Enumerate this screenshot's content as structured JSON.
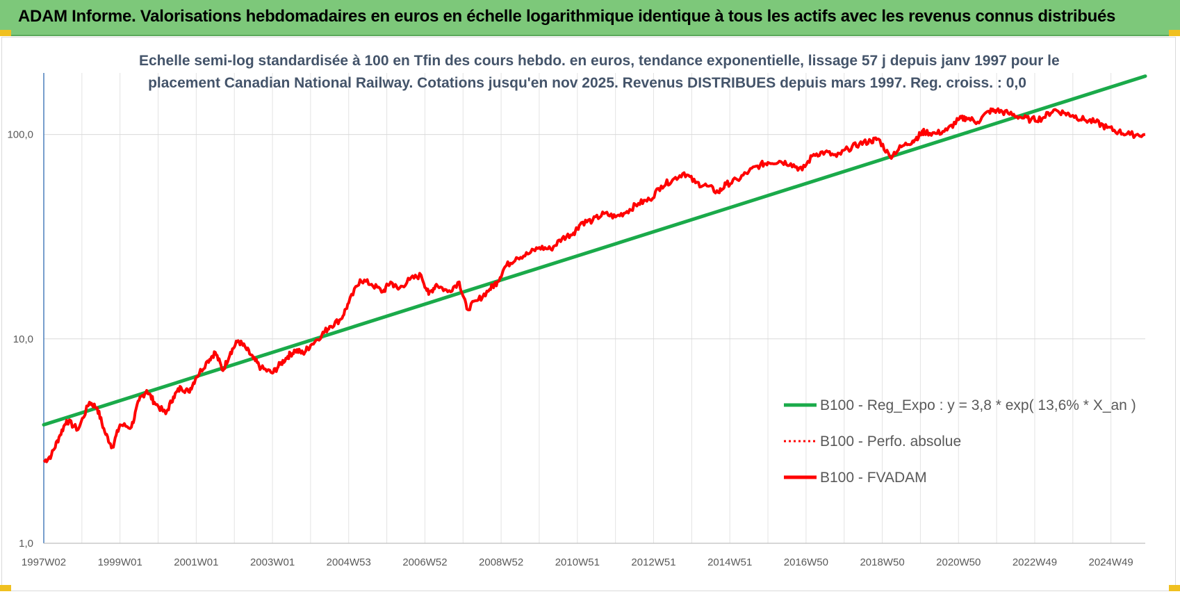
{
  "header": {
    "title": "ADAM Informe. Valorisations hebdomadaires en euros en échelle logarithmique identique à tous les actifs avec les revenus connus distribués"
  },
  "chart_data": {
    "type": "line",
    "title_line1": "Echelle semi-log standardisée à 100 en Tfin des cours hebdo. en euros, tendance exponentielle, lissage 57 j depuis janv 1997 pour le",
    "title_line2": "placement Canadian National Railway. Cotations jusqu'en nov 2025. Revenus DISTRIBUES depuis mars 1997. Reg. croiss. : 0,0",
    "y_scale": "log",
    "ylim": [
      1,
      200
    ],
    "y_ticks": [
      1,
      10,
      100
    ],
    "y_tick_labels": [
      "1,0",
      "10,0",
      "100,0"
    ],
    "xlim": [
      1997.0,
      2025.9
    ],
    "x_tick_labels": [
      "1997W02",
      "1999W01",
      "2001W01",
      "2003W01",
      "2004W53",
      "2006W52",
      "2008W52",
      "2010W51",
      "2012W51",
      "2014W51",
      "2016W50",
      "2018W50",
      "2020W50",
      "2022W49",
      "2024W49"
    ],
    "x_tick_years": [
      1997.0,
      1999.0,
      2001.0,
      2003.0,
      2005.0,
      2007.0,
      2009.0,
      2011.0,
      2013.0,
      2015.0,
      2017.0,
      2019.0,
      2021.0,
      2023.0,
      2025.0
    ],
    "grid": true,
    "legend_placement": "bottom-right",
    "series": [
      {
        "name": "B100 - Reg_Expo : y = 3,8 * exp( 13,6% *  X_an )",
        "color": "#1aaa4a",
        "style": "solid",
        "x": [
          1997.0,
          2025.9
        ],
        "values": [
          3.8,
          193
        ]
      },
      {
        "name": "B100 - Perfo. absolue",
        "color": "#ff0000",
        "style": "dotted",
        "x": [],
        "values": []
      },
      {
        "name": "B100 - FVADAM",
        "color": "#ff0000",
        "style": "solid",
        "x": [
          1997.0,
          1997.2,
          1997.4,
          1997.6,
          1997.9,
          1998.2,
          1998.4,
          1998.6,
          1998.8,
          1999.0,
          1999.3,
          1999.5,
          1999.7,
          1999.9,
          2000.2,
          2000.4,
          2000.6,
          2000.8,
          2001.0,
          2001.3,
          2001.5,
          2001.7,
          2001.9,
          2002.1,
          2002.3,
          2002.5,
          2002.7,
          2003.0,
          2003.2,
          2003.4,
          2003.6,
          2003.8,
          2004.0,
          2004.3,
          2004.5,
          2004.8,
          2005.0,
          2005.3,
          2005.6,
          2005.9,
          2006.1,
          2006.3,
          2006.6,
          2006.9,
          2007.1,
          2007.3,
          2007.6,
          2007.9,
          2008.1,
          2008.4,
          2008.7,
          2008.9,
          2009.1,
          2009.4,
          2009.7,
          2010.0,
          2010.3,
          2010.6,
          2010.9,
          2011.1,
          2011.4,
          2011.7,
          2012.0,
          2012.3,
          2012.6,
          2012.9,
          2013.2,
          2013.5,
          2013.8,
          2014.1,
          2014.4,
          2014.7,
          2014.9,
          2015.2,
          2015.5,
          2015.8,
          2016.0,
          2016.3,
          2016.6,
          2016.9,
          2017.2,
          2017.5,
          2017.8,
          2018.1,
          2018.4,
          2018.7,
          2018.9,
          2019.2,
          2019.5,
          2019.8,
          2020.0,
          2020.1,
          2020.4,
          2020.7,
          2021.0,
          2021.2,
          2021.5,
          2021.8,
          2022.0,
          2022.3,
          2022.6,
          2022.9,
          2023.2,
          2023.5,
          2023.8,
          2024.0,
          2024.3,
          2024.6,
          2024.9,
          2025.2,
          2025.5,
          2025.9
        ],
        "values": [
          2.5,
          2.7,
          3.3,
          4.0,
          3.6,
          4.9,
          4.6,
          3.5,
          2.95,
          3.8,
          3.7,
          5.0,
          5.6,
          4.9,
          4.3,
          5.2,
          5.8,
          5.5,
          6.5,
          7.8,
          8.6,
          7.0,
          8.6,
          9.8,
          9.0,
          8.0,
          7.2,
          6.8,
          7.5,
          8.2,
          8.8,
          8.5,
          9.3,
          10.5,
          11.5,
          12.5,
          15.0,
          19.5,
          18.5,
          17.0,
          19.0,
          17.5,
          19.5,
          20.5,
          16.5,
          18.5,
          17.0,
          19.0,
          14.0,
          15.5,
          17.5,
          19.0,
          22.5,
          25.0,
          26.0,
          28.0,
          27.5,
          31.0,
          33.0,
          37.0,
          38.0,
          41.0,
          39.5,
          42.0,
          46.0,
          48.0,
          56.0,
          60.0,
          65.0,
          58.0,
          56.0,
          52.0,
          57.0,
          60.0,
          66.0,
          71.0,
          73.0,
          74.0,
          72.0,
          67.0,
          80.0,
          82.0,
          78.0,
          85.0,
          90.0,
          93.0,
          95.0,
          78.0,
          87.0,
          93.0,
          100.0,
          103.0,
          101.0,
          105.0,
          118.0,
          121.0,
          115.0,
          130.0,
          131.0,
          127.0,
          122.0,
          118.0,
          120.0,
          132.0,
          127.0,
          124.0,
          118.0,
          115.0,
          108.0,
          103.0,
          100.0,
          100.0
        ]
      }
    ]
  }
}
